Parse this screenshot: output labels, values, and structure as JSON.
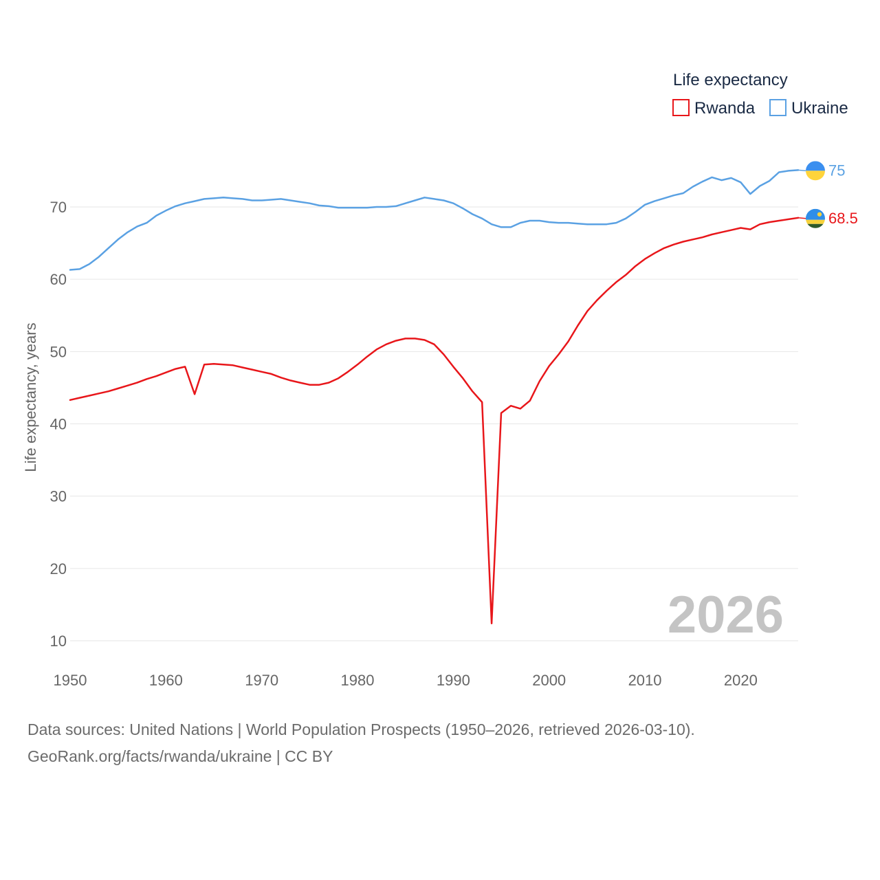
{
  "chart_data": {
    "type": "line",
    "title": "",
    "year_label": "2026",
    "xlabel": "",
    "ylabel": "Life expectancy, years",
    "xlim": [
      1950,
      2026
    ],
    "ylim": [
      10,
      75
    ],
    "x_ticks": [
      1950,
      1960,
      1970,
      1980,
      1990,
      2000,
      2010,
      2020
    ],
    "y_ticks": [
      10,
      20,
      30,
      40,
      50,
      60,
      70
    ],
    "legend": {
      "title": "Life expectancy",
      "position": "top-right",
      "entries": [
        "Rwanda",
        "Ukraine"
      ]
    },
    "series": [
      {
        "name": "Rwanda",
        "color": "#e8161a",
        "end_label": "68.5",
        "flag_icon": "rwanda-flag-icon",
        "x": [
          1950,
          1951,
          1952,
          1953,
          1954,
          1955,
          1956,
          1957,
          1958,
          1959,
          1960,
          1961,
          1962,
          1963,
          1964,
          1965,
          1966,
          1967,
          1968,
          1969,
          1970,
          1971,
          1972,
          1973,
          1974,
          1975,
          1976,
          1977,
          1978,
          1979,
          1980,
          1981,
          1982,
          1983,
          1984,
          1985,
          1986,
          1987,
          1988,
          1989,
          1990,
          1991,
          1992,
          1993,
          1994,
          1995,
          1996,
          1997,
          1998,
          1999,
          2000,
          2001,
          2002,
          2003,
          2004,
          2005,
          2006,
          2007,
          2008,
          2009,
          2010,
          2011,
          2012,
          2013,
          2014,
          2015,
          2016,
          2017,
          2018,
          2019,
          2020,
          2021,
          2022,
          2023,
          2024,
          2025,
          2026
        ],
        "values": [
          43.3,
          43.6,
          43.9,
          44.2,
          44.5,
          44.9,
          45.3,
          45.7,
          46.2,
          46.6,
          47.1,
          47.6,
          47.9,
          44.1,
          48.2,
          48.3,
          48.2,
          48.1,
          47.8,
          47.5,
          47.2,
          46.9,
          46.4,
          46.0,
          45.7,
          45.4,
          45.4,
          45.7,
          46.3,
          47.2,
          48.2,
          49.3,
          50.3,
          51.0,
          51.5,
          51.8,
          51.8,
          51.6,
          51.0,
          49.6,
          47.9,
          46.3,
          44.5,
          43.0,
          12.4,
          41.5,
          42.5,
          42.1,
          43.2,
          45.9,
          48.0,
          49.6,
          51.4,
          53.6,
          55.6,
          57.1,
          58.4,
          59.6,
          60.6,
          61.8,
          62.8,
          63.6,
          64.3,
          64.8,
          65.2,
          65.5,
          65.8,
          66.2,
          66.5,
          66.8,
          67.1,
          66.9,
          67.6,
          67.9,
          68.1,
          68.3,
          68.5
        ]
      },
      {
        "name": "Ukraine",
        "color": "#5aa1e3",
        "end_label": "75",
        "flag_icon": "ukraine-flag-icon",
        "x": [
          1950,
          1951,
          1952,
          1953,
          1954,
          1955,
          1956,
          1957,
          1958,
          1959,
          1960,
          1961,
          1962,
          1963,
          1964,
          1965,
          1966,
          1967,
          1968,
          1969,
          1970,
          1971,
          1972,
          1973,
          1974,
          1975,
          1976,
          1977,
          1978,
          1979,
          1980,
          1981,
          1982,
          1983,
          1984,
          1985,
          1986,
          1987,
          1988,
          1989,
          1990,
          1991,
          1992,
          1993,
          1994,
          1995,
          1996,
          1997,
          1998,
          1999,
          2000,
          2001,
          2002,
          2003,
          2004,
          2005,
          2006,
          2007,
          2008,
          2009,
          2010,
          2011,
          2012,
          2013,
          2014,
          2015,
          2016,
          2017,
          2018,
          2019,
          2020,
          2021,
          2022,
          2023,
          2024,
          2025,
          2026
        ],
        "values": [
          61.3,
          61.4,
          62.1,
          63.1,
          64.3,
          65.5,
          66.5,
          67.3,
          67.8,
          68.8,
          69.5,
          70.1,
          70.5,
          70.8,
          71.1,
          71.2,
          71.3,
          71.2,
          71.1,
          70.9,
          70.9,
          71.0,
          71.1,
          70.9,
          70.7,
          70.5,
          70.2,
          70.1,
          69.9,
          69.9,
          69.9,
          69.9,
          70.0,
          70.0,
          70.1,
          70.5,
          70.9,
          71.3,
          71.1,
          70.9,
          70.5,
          69.8,
          69.0,
          68.4,
          67.6,
          67.2,
          67.2,
          67.8,
          68.1,
          68.1,
          67.9,
          67.8,
          67.8,
          67.7,
          67.6,
          67.6,
          67.6,
          67.8,
          68.4,
          69.3,
          70.3,
          70.8,
          71.2,
          71.6,
          71.9,
          72.8,
          73.5,
          74.1,
          73.7,
          74.0,
          73.4,
          71.8,
          72.9,
          73.6,
          74.8,
          75.0,
          75.1
        ]
      }
    ]
  },
  "footer": {
    "line1": "Data sources: United Nations | World Population Prospects (1950–2026, retrieved 2026-03-10).",
    "line2": "GeoRank.org/facts/rwanda/ukraine | CC BY"
  }
}
